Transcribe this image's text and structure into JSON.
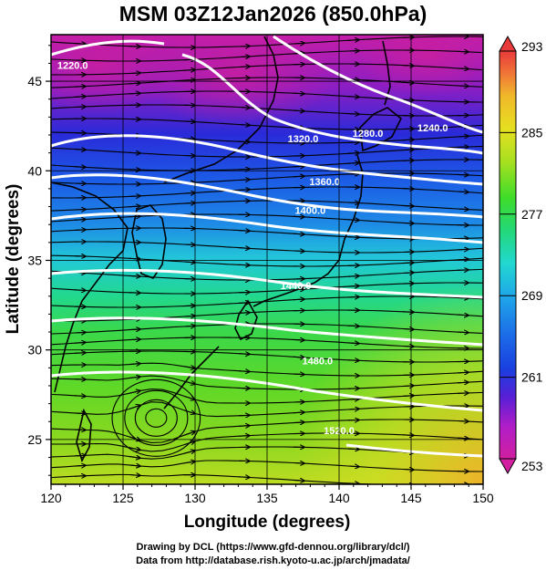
{
  "title": "MSM 03Z12Jan2026 (850.0hPa)",
  "map": {
    "x_axis_label": "Longitude (degrees)",
    "y_axis_label": "Latitude  (degrees)",
    "lon_range": [
      120,
      150
    ],
    "lat_range": [
      22.5,
      47.6
    ],
    "lon_ticks": [
      "120",
      "125",
      "130",
      "135",
      "140",
      "145",
      "150"
    ],
    "lat_ticks": [
      "25",
      "30",
      "35",
      "40",
      "45"
    ],
    "shaded_variable_range_K": [
      253,
      293
    ],
    "streamlines": true,
    "coastlines": true,
    "grid": true,
    "contour_labels": [
      {
        "text": "1220.0",
        "lon": 121.5,
        "lat": 45.7
      },
      {
        "text": "1280.0",
        "lon": 142.0,
        "lat": 41.9
      },
      {
        "text": "1240.0",
        "lon": 146.5,
        "lat": 42.2
      },
      {
        "text": "1320.0",
        "lon": 137.5,
        "lat": 41.6
      },
      {
        "text": "1360.0",
        "lon": 139.0,
        "lat": 39.2
      },
      {
        "text": "1400.0",
        "lon": 138.0,
        "lat": 37.6
      },
      {
        "text": "1440.0",
        "lon": 137.0,
        "lat": 33.4
      },
      {
        "text": "1480.0",
        "lon": 138.5,
        "lat": 29.2
      },
      {
        "text": "1520.0",
        "lon": 140.0,
        "lat": 25.3
      }
    ]
  },
  "colorbar": {
    "tick_labels": [
      "293",
      "285",
      "277",
      "269",
      "261",
      "253"
    ],
    "min": 253,
    "max": 293,
    "colors": [
      "#d11fa0",
      "#b01ec8",
      "#5a1fd6",
      "#1a3fe0",
      "#1c6ae8",
      "#1fa8e8",
      "#22d8d0",
      "#23d878",
      "#3fdc2a",
      "#a8e020",
      "#e6df20",
      "#f0b82a",
      "#f07038",
      "#e83a3a"
    ]
  },
  "credits": {
    "line1": "Drawing by DCL (https://www.gfd-dennou.org/library/dcl/)",
    "line2": "Data from http://database.rish.kyoto-u.ac.jp/arch/jmadata/"
  }
}
